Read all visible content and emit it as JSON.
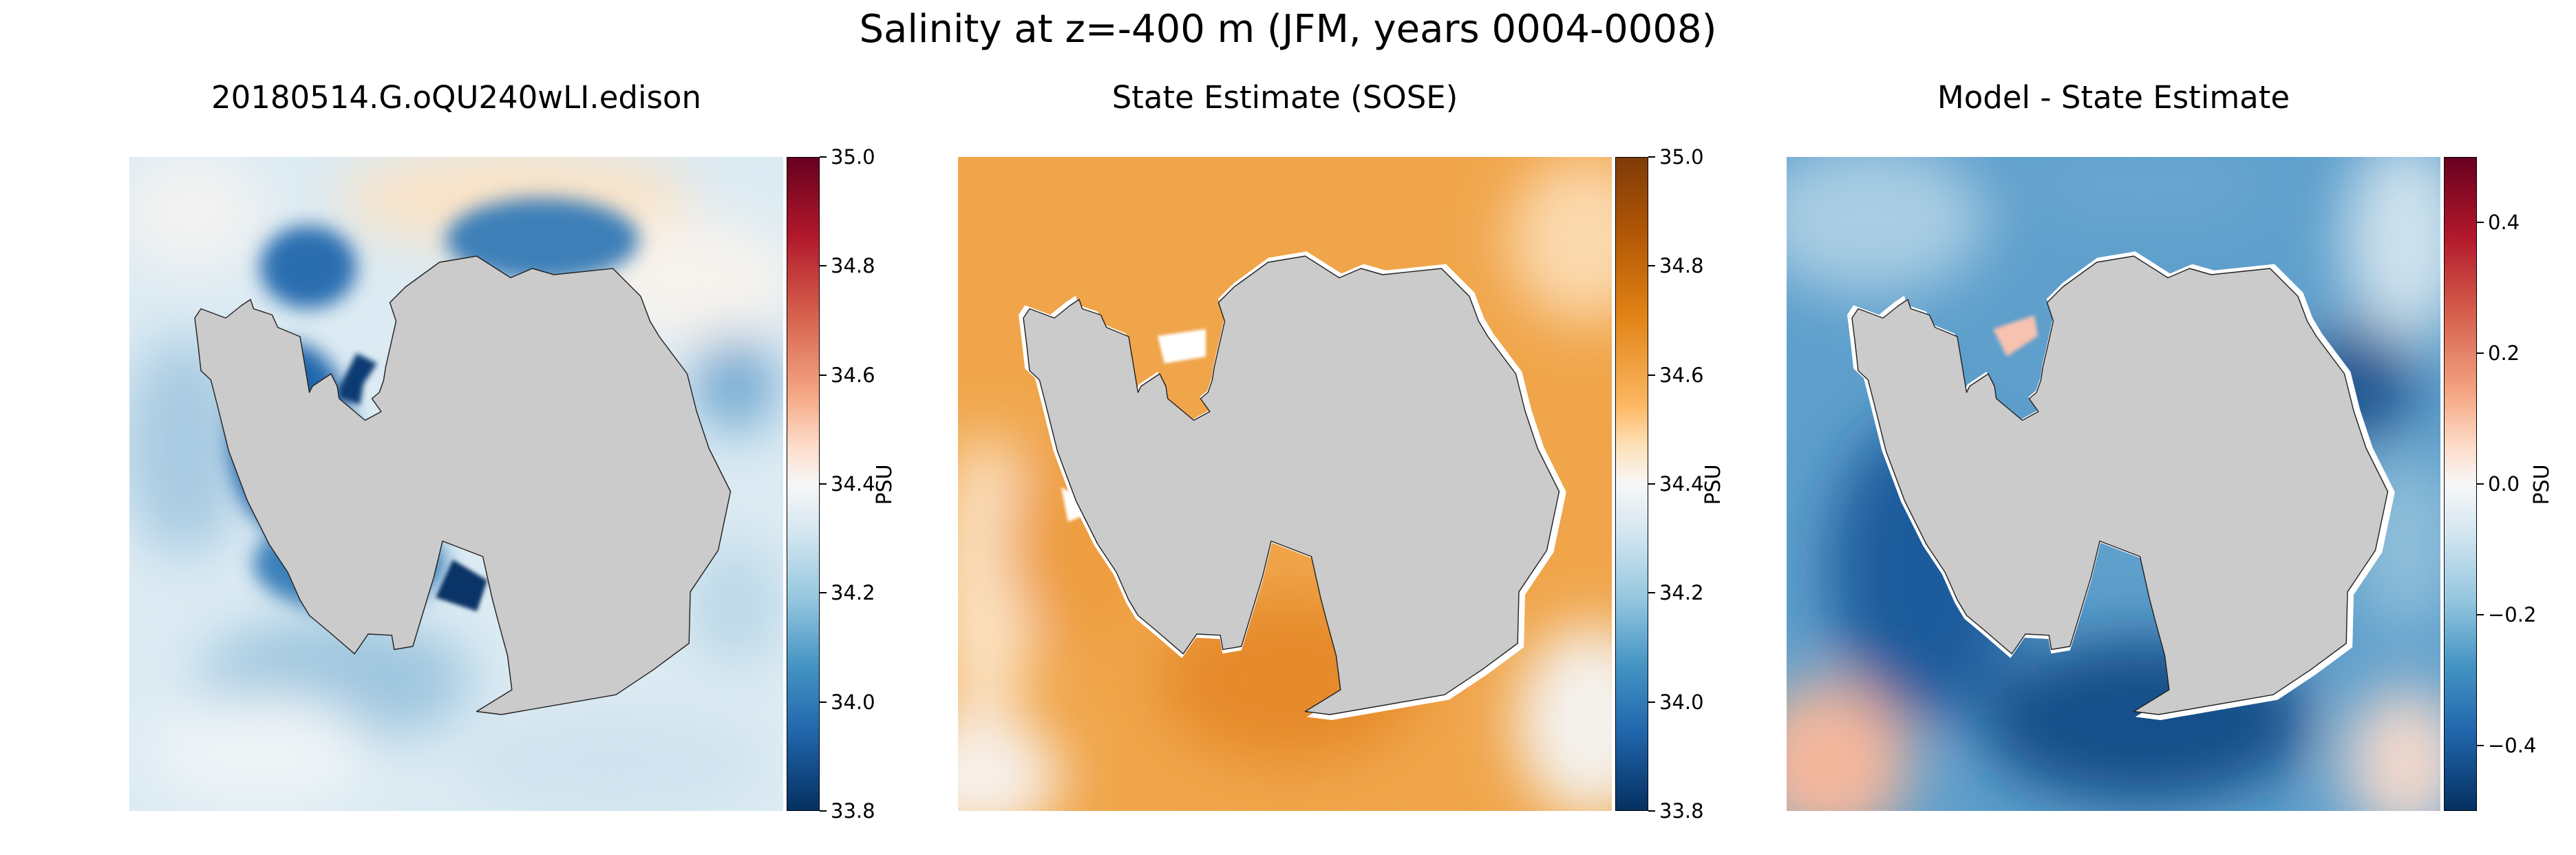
{
  "figure": {
    "suptitle": "Salinity at z=-400 m (JFM, years 0004-0008)"
  },
  "chart_data": [
    {
      "type": "heatmap",
      "title": "20180514.G.oQU240wLI.edison",
      "colormap": "RdBu_r",
      "colorbar": {
        "label": "PSU",
        "range": [
          33.8,
          35.0
        ],
        "ticks": [
          "35.0",
          "34.8",
          "34.6",
          "34.4",
          "34.2",
          "34.0",
          "33.8"
        ],
        "tick_values": [
          35.0,
          34.8,
          34.6,
          34.4,
          34.2,
          34.0,
          33.8
        ]
      },
      "land_color": "#cbcbcb"
    },
    {
      "type": "heatmap",
      "title": "State Estimate (SOSE)",
      "colormap": "PuOr_r",
      "colorbar": {
        "label": "PSU",
        "range": [
          33.8,
          35.0
        ],
        "ticks": [
          "35.0",
          "34.8",
          "34.6",
          "34.4",
          "34.2",
          "34.0",
          "33.8"
        ],
        "tick_values": [
          35.0,
          34.8,
          34.6,
          34.4,
          34.2,
          34.0,
          33.8
        ]
      },
      "land_color": "#cbcbcb"
    },
    {
      "type": "heatmap",
      "title": "Model - State Estimate",
      "colormap": "RdBu_r",
      "colorbar": {
        "label": "PSU",
        "range": [
          -0.5,
          0.5
        ],
        "ticks": [
          "0.4",
          "0.2",
          "0.0",
          "−0.2",
          "−0.4"
        ],
        "tick_values": [
          0.4,
          0.2,
          0.0,
          -0.2,
          -0.4
        ]
      },
      "land_color": "#cbcbcb"
    }
  ]
}
